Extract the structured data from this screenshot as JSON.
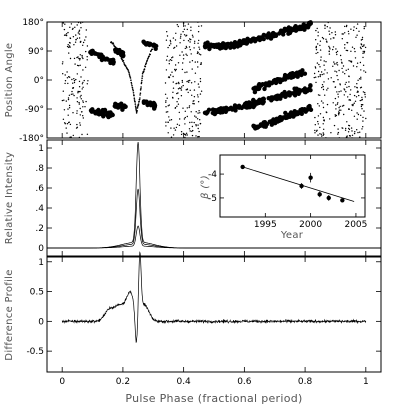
{
  "chart_data": [
    {
      "type": "scatter",
      "ylabel": "Position Angle",
      "xlim": [
        -0.05,
        1.05
      ],
      "ylim": [
        -180,
        180
      ],
      "yticks": [
        -180,
        -90,
        0,
        90,
        180
      ],
      "ytick_labels": [
        "-180°",
        "-90°",
        "0°",
        "90°",
        "180°"
      ],
      "grid": false,
      "series": [
        {
          "marker": "large-filled-circle",
          "segments": [
            {
              "x": [
                0.09,
                0.17
              ],
              "y_start": 90,
              "y_end": 55
            },
            {
              "x": [
                0.09,
                0.17
              ],
              "y_start": -98,
              "y_end": -108
            },
            {
              "x": [
                0.17,
                0.21
              ],
              "y_start": 98,
              "y_end": 72
            },
            {
              "x": [
                0.17,
                0.21
              ],
              "y_start": -75,
              "y_end": -88
            },
            {
              "x": [
                0.265,
                0.31
              ],
              "y_start": 118,
              "y_end": 98
            },
            {
              "x": [
                0.265,
                0.31
              ],
              "y_start": -65,
              "y_end": -82
            },
            {
              "x": [
                0.47,
                0.55
              ],
              "y_start": 102,
              "y_end": 108
            },
            {
              "x": [
                0.47,
                0.55
              ],
              "y_start": -100,
              "y_end": -92
            },
            {
              "x": [
                0.55,
                0.82
              ],
              "y_start": 105,
              "y_end": 172
            },
            {
              "x": [
                0.55,
                0.82
              ],
              "y_start": -92,
              "y_end": -25
            },
            {
              "x": [
                0.63,
                0.82
              ],
              "y_start": -150,
              "y_end": -85
            },
            {
              "x": [
                0.63,
                0.8
              ],
              "y_start": -30,
              "y_end": 28
            }
          ]
        },
        {
          "marker": "small-dot",
          "x_ranges": [
            [
              0.0,
              0.085
            ],
            [
              0.34,
              0.46
            ],
            [
              0.83,
              1.0
            ]
          ],
          "y_distribution": "uniform"
        },
        {
          "marker": "small-dot-curve",
          "x": [
            0.16,
            0.18,
            0.2,
            0.22,
            0.235,
            0.245,
            0.255,
            0.265,
            0.28,
            0.3
          ],
          "y": [
            120,
            95,
            60,
            25,
            -40,
            -100,
            -60,
            20,
            60,
            105
          ]
        }
      ]
    },
    {
      "type": "line",
      "ylabel": "Relative Intensity",
      "xlim": [
        -0.05,
        1.05
      ],
      "ylim": [
        -0.08,
        1.08
      ],
      "yticks": [
        0,
        0.2,
        0.4,
        0.6,
        0.8,
        1
      ],
      "ytick_labels": [
        "0",
        ".2",
        ".4",
        ".6",
        ".8",
        "1"
      ],
      "peak_x": 0.25,
      "peak_width": 0.006,
      "shoulder_width": 0.05,
      "series": [
        {
          "peak": 1.0,
          "shoulder": 0.06
        },
        {
          "peak": 0.55,
          "shoulder": 0.04
        },
        {
          "peak": 0.2,
          "shoulder": 0.02
        }
      ]
    },
    {
      "type": "scatter",
      "xlabel": "Year",
      "ylabel": "β (°)",
      "xlim": [
        1990,
        2006
      ],
      "ylim": [
        -5.8,
        -3.2
      ],
      "xticks": [
        1995,
        2000,
        2005
      ],
      "yticks": [
        -4,
        -5
      ],
      "x": [
        1992.5,
        1999,
        2000,
        2001,
        2002,
        2003.5
      ],
      "y": [
        -3.7,
        -4.5,
        -4.15,
        -4.85,
        -5.0,
        -5.1
      ],
      "yerr": [
        0.08,
        0.12,
        0.2,
        0.12,
        0.12,
        0.08
      ],
      "fit": {
        "x": [
          1992.5,
          2004.8
        ],
        "y": [
          -3.7,
          -5.15
        ]
      }
    },
    {
      "type": "line",
      "ylabel": "Difference Profile",
      "xlabel": "Pulse Phase (fractional period)",
      "xlim": [
        -0.05,
        1.05
      ],
      "ylim": [
        -0.85,
        1.08
      ],
      "yticks": [
        -0.5,
        0,
        0.5,
        1
      ],
      "ytick_labels": [
        "-0.5",
        "0",
        "0.5",
        "1"
      ],
      "xticks": [
        0,
        0.2,
        0.4,
        0.6,
        0.8,
        1
      ],
      "xtick_labels": [
        "0",
        "0.2",
        "0.4",
        "0.6",
        "0.8",
        "1"
      ],
      "noise_amplitude": 0.02,
      "features": [
        {
          "x": 0.15,
          "y": 0.12,
          "width": 0.012
        },
        {
          "x": 0.19,
          "y": 0.28,
          "width": 0.025
        },
        {
          "x": 0.225,
          "y": 0.38,
          "width": 0.012
        },
        {
          "x": 0.244,
          "y": -0.55,
          "width": 0.004
        },
        {
          "x": 0.256,
          "y": 0.95,
          "width": 0.004
        },
        {
          "x": 0.27,
          "y": 0.28,
          "width": 0.015
        }
      ]
    }
  ]
}
